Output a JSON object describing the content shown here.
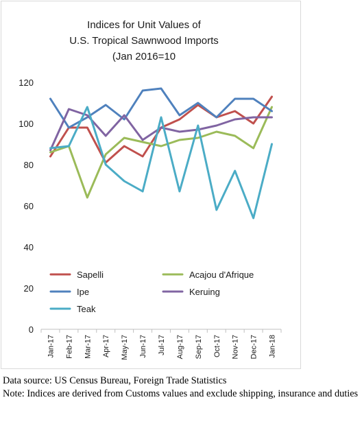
{
  "chart_data": {
    "type": "line",
    "title_lines": [
      "Indices for Unit Values of",
      "U.S. Tropical Sawnwood Imports",
      "(Jan 2016=10"
    ],
    "categories": [
      "Jan-17",
      "Feb-17",
      "Mar-17",
      "Apr-17",
      "May-17",
      "Jun-17",
      "Jul-17",
      "Aug-17",
      "Sep-17",
      "Oct-17",
      "Nov-17",
      "Dec-17",
      "Jan-18"
    ],
    "ylim": [
      0,
      120
    ],
    "yticks": [
      0,
      20,
      40,
      60,
      80,
      100,
      120
    ],
    "grid": false,
    "legend_placement": "inside-bottom",
    "series": [
      {
        "name": "Sapelli",
        "color": "#c0504d",
        "values": [
          84,
          98,
          98,
          81,
          89,
          84,
          98,
          102,
          109,
          103,
          106,
          100,
          113
        ]
      },
      {
        "name": "Acajou d'Afrique",
        "color": "#9bbb59",
        "values": [
          86,
          89,
          64,
          85,
          93,
          91,
          89,
          92,
          93,
          96,
          94,
          88,
          108
        ]
      },
      {
        "name": "Ipe",
        "color": "#4f81bd",
        "values": [
          112,
          98,
          103,
          109,
          102,
          116,
          117,
          104,
          110,
          103,
          112,
          112,
          106
        ]
      },
      {
        "name": "Keruing",
        "color": "#8064a2",
        "values": [
          87,
          107,
          104,
          94,
          104,
          92,
          98,
          96,
          97,
          99,
          102,
          103,
          103
        ]
      },
      {
        "name": "Teak",
        "color": "#4bacc6",
        "values": [
          88,
          89,
          108,
          80,
          72,
          67,
          103,
          67,
          99,
          58,
          77,
          54,
          90
        ]
      }
    ]
  },
  "footnote": {
    "source": "Data source: US Census Bureau, Foreign Trade Statistics",
    "note": "Note: Indices are derived from Customs values and exclude shipping, insurance and duties"
  }
}
